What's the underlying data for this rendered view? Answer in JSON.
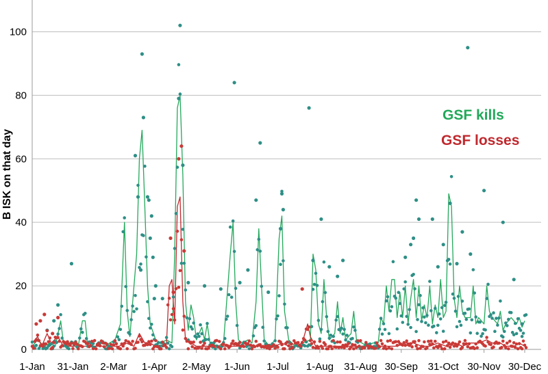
{
  "chart_data": {
    "type": "line+scatter",
    "ylabel": "B ISK on that day",
    "ylim": [
      0,
      110
    ],
    "y_ticks": [
      0,
      20,
      40,
      60,
      80,
      100
    ],
    "x_range_day": [
      1,
      365
    ],
    "x_ticks": [
      {
        "label": "1-Jan",
        "day": 1
      },
      {
        "label": "31-Jan",
        "day": 31
      },
      {
        "label": "2-Mar",
        "day": 61
      },
      {
        "label": "1-Apr",
        "day": 91
      },
      {
        "label": "2-May",
        "day": 122
      },
      {
        "label": "1-Jun",
        "day": 152
      },
      {
        "label": "1-Jul",
        "day": 182
      },
      {
        "label": "1-Aug",
        "day": 213
      },
      {
        "label": "31-Aug",
        "day": 243
      },
      {
        "label": "30-Sep",
        "day": 273
      },
      {
        "label": "31-Oct",
        "day": 304
      },
      {
        "label": "30-Nov",
        "day": 334
      },
      {
        "label": "30-Dec",
        "day": 364
      }
    ],
    "grid": true,
    "legend_placement": "right, inline",
    "series": [
      {
        "name": "GSF kills",
        "color": "#22a85a",
        "dot_color": "#2e8f86",
        "style": "line (moving average) + daily points",
        "line": [
          [
            1,
            1
          ],
          [
            5,
            3
          ],
          [
            10,
            1
          ],
          [
            14,
            2
          ],
          [
            18,
            1
          ],
          [
            22,
            9
          ],
          [
            24,
            2
          ],
          [
            28,
            1
          ],
          [
            35,
            1
          ],
          [
            38,
            9
          ],
          [
            40,
            9
          ],
          [
            42,
            1
          ],
          [
            50,
            1
          ],
          [
            55,
            1
          ],
          [
            58,
            2
          ],
          [
            62,
            3
          ],
          [
            66,
            8
          ],
          [
            69,
            40
          ],
          [
            71,
            12
          ],
          [
            73,
            4
          ],
          [
            76,
            20
          ],
          [
            78,
            30
          ],
          [
            80,
            60
          ],
          [
            82,
            69
          ],
          [
            84,
            45
          ],
          [
            86,
            20
          ],
          [
            88,
            8
          ],
          [
            92,
            3
          ],
          [
            96,
            2
          ],
          [
            100,
            3
          ],
          [
            104,
            2
          ],
          [
            106,
            30
          ],
          [
            108,
            76
          ],
          [
            110,
            80
          ],
          [
            112,
            55
          ],
          [
            114,
            15
          ],
          [
            116,
            6
          ],
          [
            118,
            14
          ],
          [
            120,
            10
          ],
          [
            122,
            3
          ],
          [
            126,
            7
          ],
          [
            128,
            3
          ],
          [
            130,
            8
          ],
          [
            132,
            2
          ],
          [
            138,
            1
          ],
          [
            142,
            2
          ],
          [
            147,
            30
          ],
          [
            149,
            40
          ],
          [
            151,
            15
          ],
          [
            153,
            3
          ],
          [
            156,
            2
          ],
          [
            160,
            3
          ],
          [
            163,
            2
          ],
          [
            166,
            15
          ],
          [
            168,
            38
          ],
          [
            170,
            20
          ],
          [
            172,
            3
          ],
          [
            176,
            1
          ],
          [
            180,
            3
          ],
          [
            183,
            35
          ],
          [
            185,
            42
          ],
          [
            187,
            12
          ],
          [
            190,
            3
          ],
          [
            195,
            1
          ],
          [
            200,
            2
          ],
          [
            206,
            3
          ],
          [
            208,
            30
          ],
          [
            210,
            25
          ],
          [
            212,
            8
          ],
          [
            214,
            5
          ],
          [
            216,
            22
          ],
          [
            218,
            10
          ],
          [
            220,
            3
          ],
          [
            224,
            5
          ],
          [
            226,
            15
          ],
          [
            228,
            5
          ],
          [
            230,
            10
          ],
          [
            232,
            3
          ],
          [
            236,
            5
          ],
          [
            238,
            12
          ],
          [
            240,
            3
          ],
          [
            244,
            2
          ],
          [
            248,
            1
          ],
          [
            252,
            2
          ],
          [
            256,
            2
          ],
          [
            258,
            10
          ],
          [
            260,
            8
          ],
          [
            262,
            20
          ],
          [
            264,
            12
          ],
          [
            266,
            22
          ],
          [
            268,
            22
          ],
          [
            270,
            10
          ],
          [
            272,
            18
          ],
          [
            274,
            10
          ],
          [
            276,
            20
          ],
          [
            278,
            8
          ],
          [
            280,
            16
          ],
          [
            282,
            22
          ],
          [
            284,
            10
          ],
          [
            286,
            20
          ],
          [
            288,
            9
          ],
          [
            290,
            14
          ],
          [
            292,
            10
          ],
          [
            294,
            20
          ],
          [
            296,
            8
          ],
          [
            298,
            14
          ],
          [
            300,
            10
          ],
          [
            302,
            22
          ],
          [
            304,
            10
          ],
          [
            306,
            12
          ],
          [
            308,
            49
          ],
          [
            310,
            45
          ],
          [
            312,
            16
          ],
          [
            314,
            10
          ],
          [
            316,
            20
          ],
          [
            318,
            12
          ],
          [
            320,
            10
          ],
          [
            324,
            10
          ],
          [
            326,
            20
          ],
          [
            328,
            8
          ],
          [
            330,
            10
          ],
          [
            334,
            8
          ],
          [
            336,
            20
          ],
          [
            338,
            12
          ],
          [
            340,
            10
          ],
          [
            344,
            8
          ],
          [
            346,
            12
          ],
          [
            348,
            6
          ],
          [
            350,
            8
          ],
          [
            354,
            10
          ],
          [
            356,
            9
          ],
          [
            358,
            8
          ],
          [
            360,
            10
          ],
          [
            362,
            7
          ],
          [
            364,
            9
          ]
        ]
      },
      {
        "name": "GSF losses",
        "color": "#c0282d",
        "dot_color": "#c93a37",
        "style": "line (moving average) + daily points",
        "line": [
          [
            1,
            2
          ],
          [
            5,
            4
          ],
          [
            8,
            1
          ],
          [
            12,
            5
          ],
          [
            15,
            2
          ],
          [
            20,
            4
          ],
          [
            24,
            1
          ],
          [
            28,
            1
          ],
          [
            35,
            1
          ],
          [
            40,
            1
          ],
          [
            45,
            1
          ],
          [
            50,
            1
          ],
          [
            55,
            1
          ],
          [
            60,
            1
          ],
          [
            65,
            1
          ],
          [
            70,
            2
          ],
          [
            76,
            1
          ],
          [
            80,
            5
          ],
          [
            84,
            2
          ],
          [
            88,
            2
          ],
          [
            92,
            1
          ],
          [
            96,
            1
          ],
          [
            100,
            2
          ],
          [
            102,
            20
          ],
          [
            104,
            22
          ],
          [
            106,
            8
          ],
          [
            108,
            45
          ],
          [
            110,
            48
          ],
          [
            112,
            15
          ],
          [
            114,
            3
          ],
          [
            118,
            2
          ],
          [
            122,
            1
          ],
          [
            130,
            1
          ],
          [
            140,
            1
          ],
          [
            150,
            1
          ],
          [
            160,
            1
          ],
          [
            170,
            1
          ],
          [
            180,
            1
          ],
          [
            185,
            2
          ],
          [
            190,
            1
          ],
          [
            195,
            1
          ],
          [
            200,
            2
          ],
          [
            204,
            8
          ],
          [
            206,
            4
          ],
          [
            210,
            1
          ],
          [
            220,
            1
          ],
          [
            230,
            1
          ],
          [
            240,
            1
          ],
          [
            250,
            1
          ],
          [
            258,
            1
          ],
          [
            264,
            1
          ],
          [
            270,
            1
          ],
          [
            276,
            2
          ],
          [
            282,
            2
          ],
          [
            288,
            1
          ],
          [
            294,
            1
          ],
          [
            300,
            2
          ],
          [
            306,
            1
          ],
          [
            312,
            2
          ],
          [
            318,
            1
          ],
          [
            324,
            2
          ],
          [
            330,
            2
          ],
          [
            336,
            3
          ],
          [
            340,
            2
          ],
          [
            346,
            2
          ],
          [
            350,
            1
          ],
          [
            356,
            1
          ],
          [
            360,
            2
          ],
          [
            364,
            1
          ]
        ]
      }
    ],
    "notable_points": {
      "GSF kills": [
        [
          12,
          6
        ],
        [
          17,
          9
        ],
        [
          20,
          14
        ],
        [
          30,
          27
        ],
        [
          77,
          61
        ],
        [
          79,
          48
        ],
        [
          81,
          25
        ],
        [
          82,
          93
        ],
        [
          83,
          73
        ],
        [
          86,
          48
        ],
        [
          87,
          47
        ],
        [
          88,
          35
        ],
        [
          89,
          42
        ],
        [
          90,
          29
        ],
        [
          91,
          16
        ],
        [
          92,
          20
        ],
        [
          97,
          16
        ],
        [
          109,
          79
        ],
        [
          110,
          102
        ],
        [
          112,
          58
        ],
        [
          116,
          21
        ],
        [
          128,
          20
        ],
        [
          140,
          19
        ],
        [
          150,
          84
        ],
        [
          154,
          21
        ],
        [
          160,
          25
        ],
        [
          166,
          47
        ],
        [
          169,
          65
        ],
        [
          175,
          18
        ],
        [
          184,
          38
        ],
        [
          185,
          49
        ],
        [
          186,
          44
        ],
        [
          205,
          76
        ],
        [
          208,
          28
        ],
        [
          214,
          41
        ],
        [
          220,
          26
        ],
        [
          226,
          23
        ],
        [
          230,
          28
        ],
        [
          276,
          29
        ],
        [
          280,
          33
        ],
        [
          282,
          35
        ],
        [
          284,
          47
        ],
        [
          286,
          41
        ],
        [
          296,
          41
        ],
        [
          300,
          26
        ],
        [
          304,
          33
        ],
        [
          309,
          46
        ],
        [
          314,
          27
        ],
        [
          318,
          37
        ],
        [
          322,
          95
        ],
        [
          324,
          30
        ],
        [
          334,
          50
        ],
        [
          348,
          40
        ],
        [
          356,
          22
        ],
        [
          362,
          8
        ]
      ],
      "GSF losses": [
        [
          4,
          8
        ],
        [
          7,
          9
        ],
        [
          10,
          11
        ],
        [
          16,
          5
        ],
        [
          20,
          10
        ],
        [
          103,
          35
        ],
        [
          105,
          18
        ],
        [
          109,
          60
        ],
        [
          111,
          64
        ],
        [
          113,
          31
        ],
        [
          118,
          2
        ],
        [
          200,
          19
        ]
      ]
    }
  }
}
